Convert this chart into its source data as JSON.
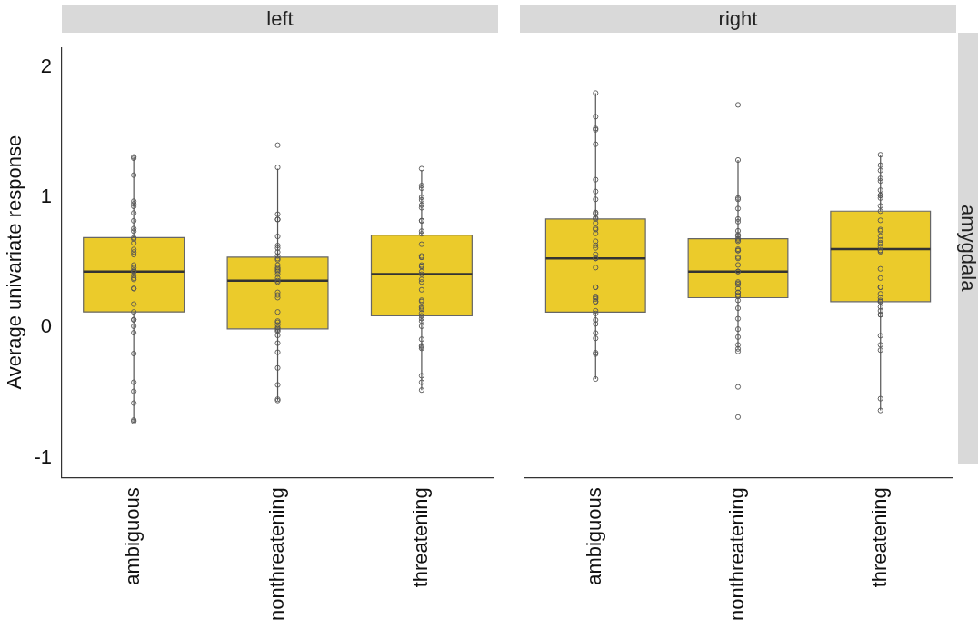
{
  "chart_data": [
    {
      "type": "box",
      "title": "left",
      "ylabel": "Average univariate response",
      "categories": [
        "ambiguous",
        "nonthreatening",
        "threatening"
      ],
      "ylim": [
        -1.15,
        2.15
      ],
      "yticks": [
        -1,
        0,
        1,
        2
      ],
      "grid": false,
      "marker": "circle",
      "series": [
        {
          "type": "box",
          "color": "#ebcb2b",
          "boxes": [
            {
              "low": -0.73,
              "q1": 0.12,
              "median": 0.43,
              "q3": 0.69,
              "high": 1.31
            },
            {
              "low": -0.56,
              "q1": -0.01,
              "median": 0.36,
              "q3": 0.54,
              "high": 1.22
            },
            {
              "low": -0.48,
              "q1": 0.09,
              "median": 0.41,
              "q3": 0.71,
              "high": 1.21
            }
          ]
        },
        {
          "type": "scatter",
          "color": "#555555",
          "x": [
            "ambiguous",
            "ambiguous",
            "ambiguous",
            "ambiguous",
            "ambiguous",
            "ambiguous",
            "ambiguous",
            "ambiguous",
            "ambiguous",
            "ambiguous",
            "ambiguous",
            "ambiguous",
            "ambiguous",
            "ambiguous",
            "ambiguous",
            "ambiguous",
            "ambiguous",
            "ambiguous",
            "ambiguous",
            "ambiguous",
            "ambiguous",
            "ambiguous",
            "ambiguous",
            "ambiguous",
            "ambiguous",
            "ambiguous",
            "ambiguous",
            "ambiguous",
            "ambiguous",
            "ambiguous",
            "ambiguous",
            "ambiguous",
            "ambiguous",
            "ambiguous",
            "ambiguous",
            "ambiguous",
            "ambiguous",
            "ambiguous",
            "nonthreatening",
            "nonthreatening",
            "nonthreatening",
            "nonthreatening",
            "nonthreatening",
            "nonthreatening",
            "nonthreatening",
            "nonthreatening",
            "nonthreatening",
            "nonthreatening",
            "nonthreatening",
            "nonthreatening",
            "nonthreatening",
            "nonthreatening",
            "nonthreatening",
            "nonthreatening",
            "nonthreatening",
            "nonthreatening",
            "nonthreatening",
            "nonthreatening",
            "nonthreatening",
            "nonthreatening",
            "nonthreatening",
            "nonthreatening",
            "nonthreatening",
            "nonthreatening",
            "nonthreatening",
            "nonthreatening",
            "nonthreatening",
            "nonthreatening",
            "nonthreatening",
            "nonthreatening",
            "nonthreatening",
            "nonthreatening",
            "nonthreatening",
            "nonthreatening",
            "nonthreatening",
            "nonthreatening",
            "nonthreatening",
            "threatening",
            "threatening",
            "threatening",
            "threatening",
            "threatening",
            "threatening",
            "threatening",
            "threatening",
            "threatening",
            "threatening",
            "threatening",
            "threatening",
            "threatening",
            "threatening",
            "threatening",
            "threatening",
            "threatening",
            "threatening",
            "threatening",
            "threatening",
            "threatening",
            "threatening",
            "threatening",
            "threatening",
            "threatening",
            "threatening",
            "threatening",
            "threatening",
            "threatening",
            "threatening",
            "threatening",
            "threatening",
            "threatening",
            "threatening",
            "threatening",
            "threatening",
            "threatening",
            "threatening",
            "threatening",
            "threatening"
          ],
          "values": [
            1.31,
            1.3,
            1.17,
            0.97,
            0.95,
            0.93,
            0.88,
            0.82,
            0.76,
            0.74,
            0.69,
            0.68,
            0.65,
            0.6,
            0.58,
            0.56,
            0.48,
            0.46,
            0.44,
            0.43,
            0.43,
            0.4,
            0.38,
            0.37,
            0.3,
            0.3,
            0.18,
            0.12,
            0.06,
            0.06,
            0.01,
            -0.04,
            -0.2,
            -0.42,
            -0.49,
            -0.58,
            -0.71,
            -0.72,
            1.4,
            1.23,
            0.87,
            0.83,
            0.83,
            0.7,
            0.63,
            0.61,
            0.58,
            0.55,
            0.53,
            0.52,
            0.48,
            0.46,
            0.45,
            0.44,
            0.43,
            0.41,
            0.38,
            0.36,
            0.35,
            0.27,
            0.25,
            0.23,
            0.12,
            0.05,
            0.04,
            0.02,
            0.0,
            -0.01,
            -0.02,
            -0.03,
            -0.06,
            -0.12,
            -0.19,
            -0.31,
            -0.44,
            -0.55,
            -0.56,
            1.22,
            1.09,
            1.07,
            1.0,
            0.98,
            0.94,
            0.92,
            0.82,
            0.82,
            0.74,
            0.72,
            0.64,
            0.55,
            0.54,
            0.54,
            0.48,
            0.47,
            0.47,
            0.43,
            0.41,
            0.37,
            0.35,
            0.29,
            0.21,
            0.2,
            0.16,
            0.15,
            0.14,
            0.11,
            0.09,
            0.07,
            0.05,
            0.01,
            -0.09,
            -0.14,
            -0.15,
            -0.16,
            -0.37,
            -0.42,
            -0.48
          ]
        }
      ]
    },
    {
      "type": "box",
      "title": "right",
      "annotations": [
        "amygdala"
      ],
      "categories": [
        "ambiguous",
        "nonthreatening",
        "threatening"
      ],
      "ylim": [
        -1.15,
        2.15
      ],
      "yticks": [
        -1,
        0,
        1,
        2
      ],
      "grid": false,
      "marker": "circle",
      "tick_labels": "x",
      "series": [
        {
          "type": "box",
          "color": "#ebcb2b",
          "boxes": [
            {
              "low": -0.4,
              "q1": 0.11,
              "median": 0.52,
              "q3": 0.82,
              "high": 1.78
            },
            {
              "low": -0.17,
              "q1": 0.22,
              "median": 0.42,
              "q3": 0.67,
              "high": 1.27
            },
            {
              "low": -0.64,
              "q1": 0.19,
              "median": 0.59,
              "q3": 0.88,
              "high": 1.31
            }
          ]
        },
        {
          "type": "scatter",
          "color": "#555555",
          "x": [
            "ambiguous",
            "ambiguous",
            "ambiguous",
            "ambiguous",
            "ambiguous",
            "ambiguous",
            "ambiguous",
            "ambiguous",
            "ambiguous",
            "ambiguous",
            "ambiguous",
            "ambiguous",
            "ambiguous",
            "ambiguous",
            "ambiguous",
            "ambiguous",
            "ambiguous",
            "ambiguous",
            "ambiguous",
            "ambiguous",
            "ambiguous",
            "ambiguous",
            "ambiguous",
            "ambiguous",
            "ambiguous",
            "ambiguous",
            "ambiguous",
            "ambiguous",
            "ambiguous",
            "ambiguous",
            "ambiguous",
            "ambiguous",
            "ambiguous",
            "ambiguous",
            "ambiguous",
            "ambiguous",
            "ambiguous",
            "ambiguous",
            "ambiguous",
            "nonthreatening",
            "nonthreatening",
            "nonthreatening",
            "nonthreatening",
            "nonthreatening",
            "nonthreatening",
            "nonthreatening",
            "nonthreatening",
            "nonthreatening",
            "nonthreatening",
            "nonthreatening",
            "nonthreatening",
            "nonthreatening",
            "nonthreatening",
            "nonthreatening",
            "nonthreatening",
            "nonthreatening",
            "nonthreatening",
            "nonthreatening",
            "nonthreatening",
            "nonthreatening",
            "nonthreatening",
            "nonthreatening",
            "nonthreatening",
            "nonthreatening",
            "nonthreatening",
            "nonthreatening",
            "nonthreatening",
            "nonthreatening",
            "nonthreatening",
            "nonthreatening",
            "nonthreatening",
            "nonthreatening",
            "nonthreatening",
            "nonthreatening",
            "nonthreatening",
            "nonthreatening",
            "nonthreatening",
            "nonthreatening",
            "threatening",
            "threatening",
            "threatening",
            "threatening",
            "threatening",
            "threatening",
            "threatening",
            "threatening",
            "threatening",
            "threatening",
            "threatening",
            "threatening",
            "threatening",
            "threatening",
            "threatening",
            "threatening",
            "threatening",
            "threatening",
            "threatening",
            "threatening",
            "threatening",
            "threatening",
            "threatening",
            "threatening",
            "threatening",
            "threatening",
            "threatening",
            "threatening",
            "threatening",
            "threatening",
            "threatening",
            "threatening",
            "threatening",
            "threatening",
            "threatening",
            "threatening",
            "threatening",
            "threatening",
            "threatening",
            "threatening"
          ],
          "values": [
            1.78,
            1.6,
            1.5,
            1.51,
            1.39,
            1.12,
            1.03,
            0.97,
            0.87,
            0.86,
            0.83,
            0.82,
            0.79,
            0.75,
            0.74,
            0.71,
            0.65,
            0.62,
            0.6,
            0.55,
            0.52,
            0.52,
            0.45,
            0.3,
            0.3,
            0.23,
            0.22,
            0.21,
            0.19,
            0.19,
            0.12,
            0.1,
            0.05,
            0.02,
            -0.05,
            -0.09,
            -0.2,
            -0.21,
            -0.4,
            1.69,
            1.27,
            0.98,
            0.97,
            0.9,
            0.82,
            0.8,
            0.73,
            0.7,
            0.69,
            0.67,
            0.66,
            0.65,
            0.59,
            0.58,
            0.58,
            0.53,
            0.52,
            0.47,
            0.42,
            0.42,
            0.34,
            0.33,
            0.32,
            0.29,
            0.26,
            0.26,
            0.24,
            0.23,
            0.2,
            0.14,
            0.06,
            -0.02,
            -0.08,
            -0.14,
            -0.17,
            -0.19,
            -0.46,
            -0.69,
            1.31,
            1.23,
            1.19,
            1.13,
            1.11,
            1.04,
            1.0,
            1.0,
            0.98,
            0.92,
            0.88,
            0.81,
            0.74,
            0.73,
            0.69,
            0.66,
            0.64,
            0.63,
            0.61,
            0.58,
            0.58,
            0.57,
            0.44,
            0.37,
            0.3,
            0.3,
            0.25,
            0.22,
            0.2,
            0.19,
            0.19,
            0.15,
            0.12,
            0.09,
            0.09,
            -0.07,
            -0.14,
            -0.18,
            -0.55,
            -0.64
          ]
        }
      ]
    }
  ]
}
